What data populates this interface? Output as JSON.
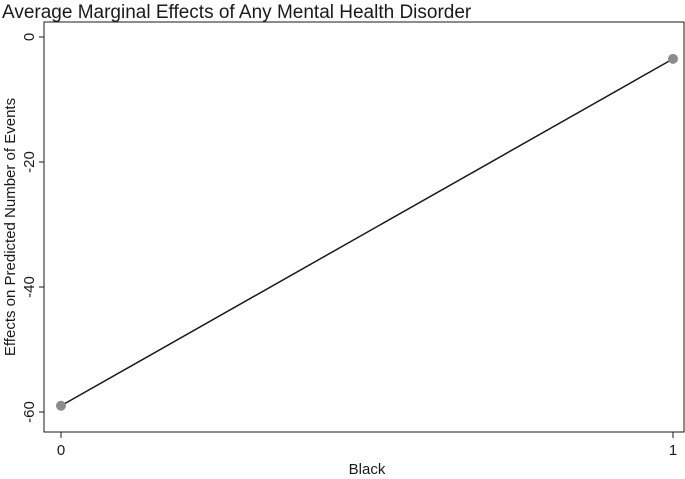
{
  "chart_data": {
    "type": "line",
    "title": "Average Marginal Effects of Any Mental Health Disorder",
    "xlabel": "Black",
    "ylabel": "Effects on Predicted Number of Events",
    "x": [
      0,
      1
    ],
    "x_ticks": [
      "0",
      "1"
    ],
    "y_ticks": [
      "0",
      "-20",
      "-40",
      "-60"
    ],
    "y_tick_values": [
      0,
      -20,
      -40,
      -60
    ],
    "xlim": [
      0,
      1
    ],
    "ylim": [
      -60,
      0
    ],
    "grid": false,
    "series": [
      {
        "values": [
          -59,
          -3.5
        ]
      }
    ],
    "colors": {
      "line": "#1a1a1a",
      "marker": "#8c8c8c",
      "frame": "#1a1a1a",
      "background": "#ffffff"
    }
  }
}
